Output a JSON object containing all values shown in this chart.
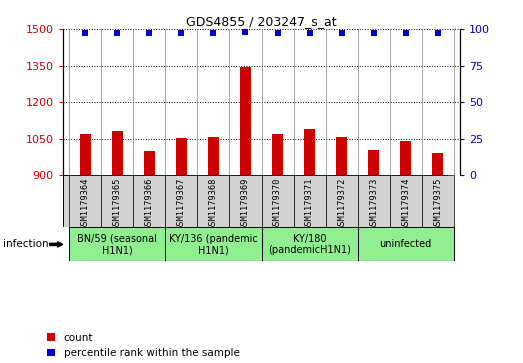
{
  "title": "GDS4855 / 203247_s_at",
  "samples": [
    "GSM1179364",
    "GSM1179365",
    "GSM1179366",
    "GSM1179367",
    "GSM1179368",
    "GSM1179369",
    "GSM1179370",
    "GSM1179371",
    "GSM1179372",
    "GSM1179373",
    "GSM1179374",
    "GSM1179375"
  ],
  "counts": [
    1068,
    1080,
    1000,
    1052,
    1058,
    1344,
    1068,
    1088,
    1055,
    1003,
    1040,
    993
  ],
  "percentiles": [
    97,
    97,
    97,
    97,
    97,
    98,
    97,
    97,
    97,
    97,
    97,
    97
  ],
  "bar_color": "#cc0000",
  "dot_color": "#0000cc",
  "ylim_left": [
    900,
    1500
  ],
  "ylim_right": [
    0,
    100
  ],
  "yticks_left": [
    900,
    1050,
    1200,
    1350,
    1500
  ],
  "yticks_right": [
    0,
    25,
    50,
    75,
    100
  ],
  "groups": [
    {
      "label": "BN/59 (seasonal\nH1N1)",
      "start": 0,
      "end": 3
    },
    {
      "label": "KY/136 (pandemic\nH1N1)",
      "start": 3,
      "end": 6
    },
    {
      "label": "KY/180\n(pandemicH1N1)",
      "start": 6,
      "end": 9
    },
    {
      "label": "uninfected",
      "start": 9,
      "end": 12
    }
  ],
  "group_color": "#90ee90",
  "sample_box_color": "#d3d3d3",
  "infection_label": "infection",
  "legend_count_label": "count",
  "legend_percentile_label": "percentile rank within the sample"
}
